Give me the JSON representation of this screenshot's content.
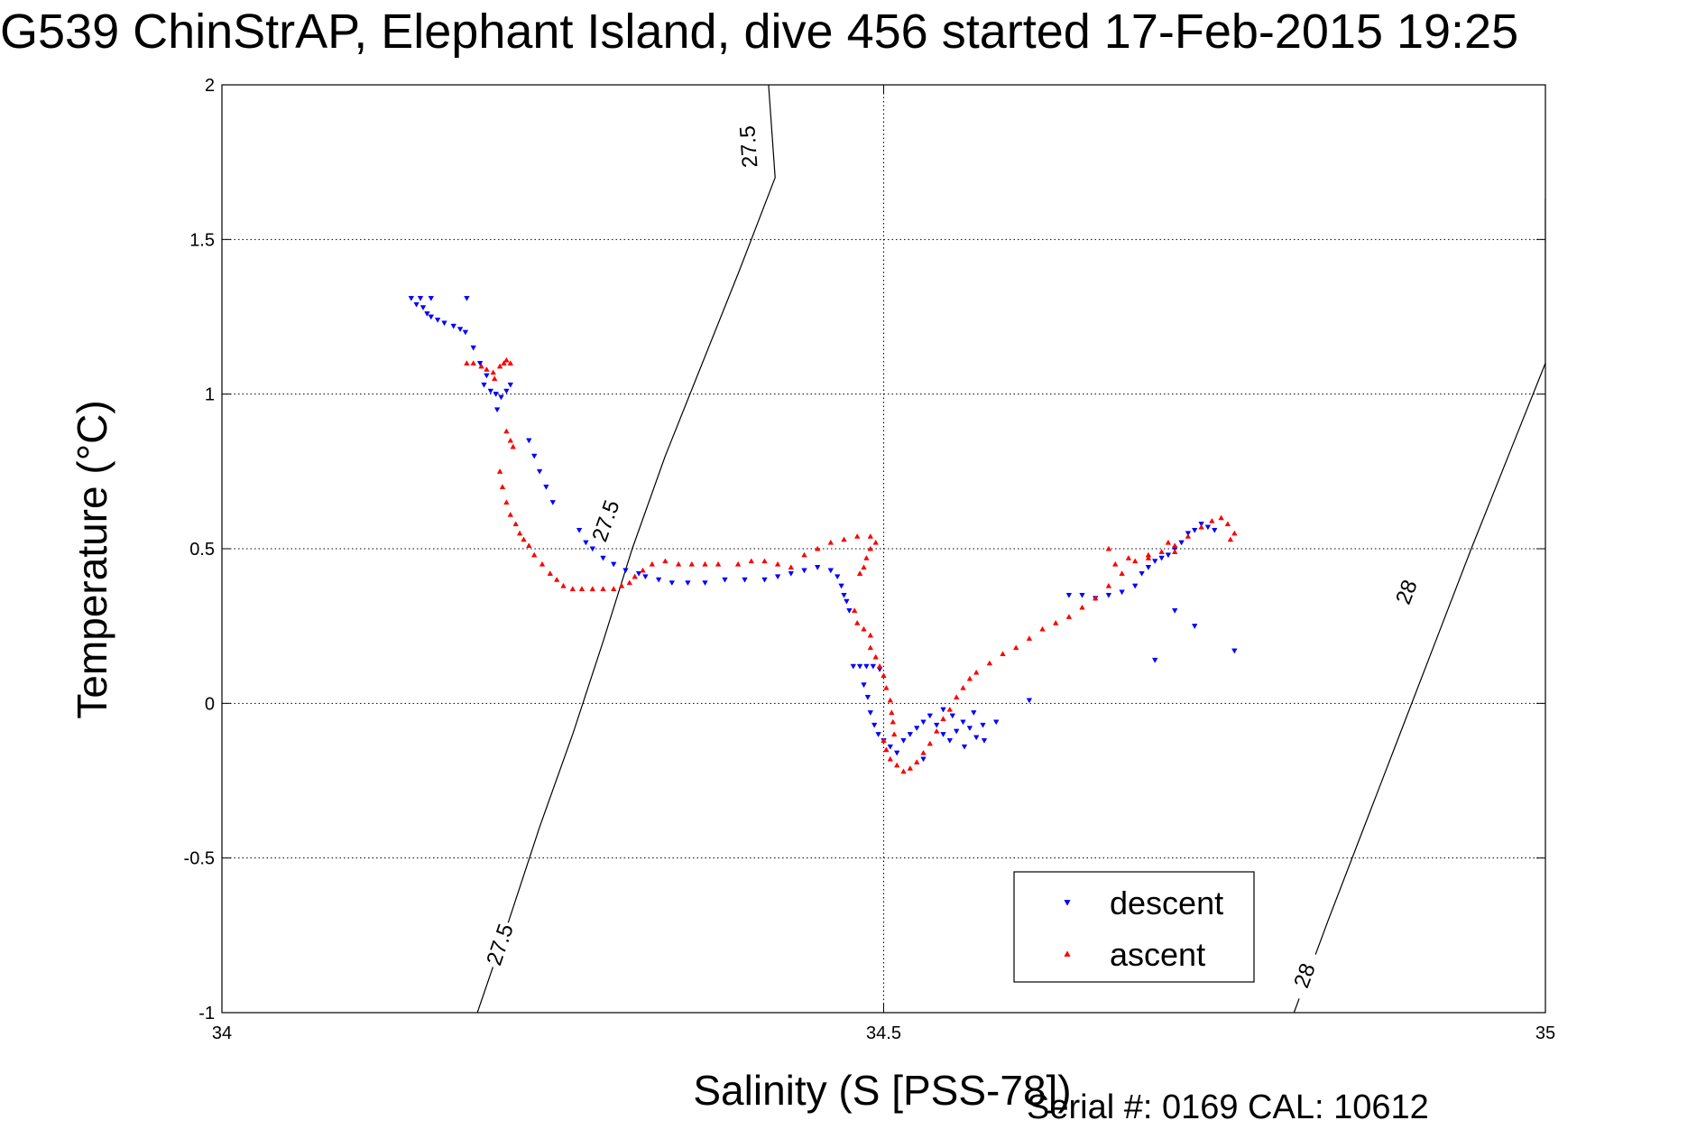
{
  "figure": {
    "title": "G539 ChinStrAP, Elephant Island, dive 456 started 17-Feb-2015 19:25",
    "serial": "Serial #: 0169 CAL: 10612"
  },
  "chart_data": {
    "type": "scatter",
    "xlabel": "Salinity (S [PSS-78])",
    "ylabel": "Temperature (°C)",
    "xlim": [
      34,
      35
    ],
    "ylim": [
      -1,
      2
    ],
    "x_ticks": [
      34,
      34.5,
      35
    ],
    "x_tick_labels": [
      "34",
      "34.5",
      "35"
    ],
    "y_ticks": [
      -1,
      -0.5,
      0,
      0.5,
      1,
      1.5,
      2
    ],
    "y_tick_labels": [
      "-1",
      "-0.5",
      "0",
      "0.5",
      "1",
      "1.5",
      "2"
    ],
    "grid": true,
    "legend_position": "bottom-right",
    "contours": [
      {
        "label": "27.5",
        "points": [
          [
            34.193,
            -1.0
          ],
          [
            34.217,
            -0.7
          ],
          [
            34.24,
            -0.4
          ],
          [
            34.265,
            -0.1
          ],
          [
            34.288,
            0.2
          ],
          [
            34.31,
            0.5
          ],
          [
            34.335,
            0.8
          ],
          [
            34.363,
            1.1
          ],
          [
            34.391,
            1.4
          ],
          [
            34.418,
            1.7
          ],
          [
            34.413,
            2.0
          ]
        ],
        "label_positions": [
          [
            34.21,
            -0.78
          ],
          [
            34.29,
            0.59
          ],
          [
            34.398,
            1.8
          ]
        ]
      },
      {
        "label": "28",
        "points": [
          [
            34.81,
            -1.0
          ],
          [
            34.836,
            -0.7
          ],
          [
            34.863,
            -0.4
          ],
          [
            34.89,
            -0.1
          ],
          [
            34.917,
            0.2
          ],
          [
            34.944,
            0.5
          ],
          [
            34.972,
            0.8
          ],
          [
            35.0,
            1.1
          ],
          [
            35.0,
            1.63
          ]
        ],
        "label_positions": [
          [
            34.818,
            -0.88
          ],
          [
            34.895,
            0.36
          ]
        ]
      }
    ],
    "series": [
      {
        "name": "descent",
        "color": "#0000ff",
        "marker": "triangle-down",
        "points": [
          [
            34.143,
            1.31
          ],
          [
            34.15,
            1.31
          ],
          [
            34.158,
            1.31
          ],
          [
            34.185,
            1.31
          ],
          [
            34.147,
            1.29
          ],
          [
            34.152,
            1.28
          ],
          [
            34.155,
            1.26
          ],
          [
            34.158,
            1.25
          ],
          [
            34.163,
            1.24
          ],
          [
            34.168,
            1.23
          ],
          [
            34.175,
            1.22
          ],
          [
            34.18,
            1.21
          ],
          [
            34.184,
            1.2
          ],
          [
            34.19,
            1.15
          ],
          [
            34.195,
            1.1
          ],
          [
            34.2,
            1.06
          ],
          [
            34.198,
            1.03
          ],
          [
            34.203,
            1.01
          ],
          [
            34.207,
            1.0
          ],
          [
            34.211,
            0.99
          ],
          [
            34.215,
            1.01
          ],
          [
            34.218,
            1.03
          ],
          [
            34.208,
            0.95
          ],
          [
            34.232,
            0.85
          ],
          [
            34.236,
            0.8
          ],
          [
            34.24,
            0.75
          ],
          [
            34.245,
            0.7
          ],
          [
            34.25,
            0.65
          ],
          [
            34.27,
            0.56
          ],
          [
            34.275,
            0.52
          ],
          [
            34.28,
            0.5
          ],
          [
            34.288,
            0.47
          ],
          [
            34.296,
            0.45
          ],
          [
            34.305,
            0.43
          ],
          [
            34.315,
            0.42
          ],
          [
            34.32,
            0.41
          ],
          [
            34.33,
            0.4
          ],
          [
            34.34,
            0.39
          ],
          [
            34.352,
            0.39
          ],
          [
            34.365,
            0.39
          ],
          [
            34.38,
            0.4
          ],
          [
            34.395,
            0.4
          ],
          [
            34.41,
            0.4
          ],
          [
            34.42,
            0.41
          ],
          [
            34.43,
            0.42
          ],
          [
            34.44,
            0.43
          ],
          [
            34.45,
            0.44
          ],
          [
            34.46,
            0.43
          ],
          [
            34.465,
            0.41
          ],
          [
            34.468,
            0.38
          ],
          [
            34.47,
            0.35
          ],
          [
            34.472,
            0.33
          ],
          [
            34.474,
            0.3
          ],
          [
            34.477,
            0.12
          ],
          [
            34.482,
            0.12
          ],
          [
            34.487,
            0.12
          ],
          [
            34.492,
            0.12
          ],
          [
            34.497,
            0.11
          ],
          [
            34.485,
            0.06
          ],
          [
            34.488,
            0.02
          ],
          [
            34.49,
            -0.03
          ],
          [
            34.493,
            -0.07
          ],
          [
            34.496,
            -0.1
          ],
          [
            34.5,
            -0.12
          ],
          [
            34.505,
            -0.14
          ],
          [
            34.51,
            -0.16
          ],
          [
            34.515,
            -0.12
          ],
          [
            34.52,
            -0.1
          ],
          [
            34.525,
            -0.08
          ],
          [
            34.53,
            -0.06
          ],
          [
            34.535,
            -0.04
          ],
          [
            34.54,
            -0.07
          ],
          [
            34.545,
            -0.1
          ],
          [
            34.55,
            -0.12
          ],
          [
            34.555,
            -0.09
          ],
          [
            34.56,
            -0.06
          ],
          [
            34.565,
            -0.08
          ],
          [
            34.57,
            -0.11
          ],
          [
            34.575,
            -0.07
          ],
          [
            34.585,
            -0.06
          ],
          [
            34.53,
            -0.18
          ],
          [
            34.545,
            -0.02
          ],
          [
            34.552,
            -0.04
          ],
          [
            34.561,
            -0.14
          ],
          [
            34.568,
            -0.03
          ],
          [
            34.576,
            -0.12
          ],
          [
            34.64,
            0.35
          ],
          [
            34.65,
            0.35
          ],
          [
            34.66,
            0.34
          ],
          [
            34.67,
            0.35
          ],
          [
            34.68,
            0.36
          ],
          [
            34.69,
            0.38
          ],
          [
            34.695,
            0.42
          ],
          [
            34.7,
            0.44
          ],
          [
            34.705,
            0.46
          ],
          [
            34.71,
            0.47
          ],
          [
            34.715,
            0.48
          ],
          [
            34.72,
            0.5
          ],
          [
            34.725,
            0.52
          ],
          [
            34.73,
            0.55
          ],
          [
            34.735,
            0.56
          ],
          [
            34.74,
            0.58
          ],
          [
            34.745,
            0.57
          ],
          [
            34.75,
            0.56
          ],
          [
            34.705,
            0.14
          ],
          [
            34.72,
            0.3
          ],
          [
            34.735,
            0.25
          ],
          [
            34.765,
            0.17
          ],
          [
            34.61,
            0.01
          ]
        ]
      },
      {
        "name": "ascent",
        "color": "#ff0000",
        "marker": "triangle-up",
        "points": [
          [
            34.185,
            1.1
          ],
          [
            34.19,
            1.1
          ],
          [
            34.196,
            1.09
          ],
          [
            34.2,
            1.08
          ],
          [
            34.205,
            1.07
          ],
          [
            34.21,
            1.09
          ],
          [
            34.213,
            1.1
          ],
          [
            34.215,
            1.11
          ],
          [
            34.218,
            1.1
          ],
          [
            34.206,
            1.05
          ],
          [
            34.215,
            0.88
          ],
          [
            34.218,
            0.85
          ],
          [
            34.22,
            0.83
          ],
          [
            34.21,
            0.75
          ],
          [
            34.212,
            0.7
          ],
          [
            34.215,
            0.65
          ],
          [
            34.218,
            0.61
          ],
          [
            34.222,
            0.58
          ],
          [
            34.225,
            0.55
          ],
          [
            34.228,
            0.53
          ],
          [
            34.232,
            0.51
          ],
          [
            34.236,
            0.48
          ],
          [
            34.242,
            0.45
          ],
          [
            34.248,
            0.42
          ],
          [
            34.253,
            0.4
          ],
          [
            34.258,
            0.38
          ],
          [
            34.265,
            0.37
          ],
          [
            34.272,
            0.37
          ],
          [
            34.28,
            0.37
          ],
          [
            34.288,
            0.37
          ],
          [
            34.296,
            0.37
          ],
          [
            34.302,
            0.38
          ],
          [
            34.308,
            0.39
          ],
          [
            34.312,
            0.41
          ],
          [
            34.318,
            0.43
          ],
          [
            34.325,
            0.45
          ],
          [
            34.335,
            0.46
          ],
          [
            34.345,
            0.45
          ],
          [
            34.355,
            0.45
          ],
          [
            34.365,
            0.45
          ],
          [
            34.375,
            0.45
          ],
          [
            34.39,
            0.45
          ],
          [
            34.4,
            0.46
          ],
          [
            34.41,
            0.46
          ],
          [
            34.42,
            0.45
          ],
          [
            34.43,
            0.44
          ],
          [
            34.44,
            0.48
          ],
          [
            34.45,
            0.5
          ],
          [
            34.46,
            0.52
          ],
          [
            34.47,
            0.53
          ],
          [
            34.48,
            0.54
          ],
          [
            34.49,
            0.54
          ],
          [
            34.494,
            0.52
          ],
          [
            34.49,
            0.5
          ],
          [
            34.487,
            0.47
          ],
          [
            34.485,
            0.44
          ],
          [
            34.482,
            0.42
          ],
          [
            34.478,
            0.3
          ],
          [
            34.48,
            0.26
          ],
          [
            34.485,
            0.24
          ],
          [
            34.49,
            0.22
          ],
          [
            34.49,
            0.18
          ],
          [
            34.494,
            0.15
          ],
          [
            34.497,
            0.12
          ],
          [
            34.5,
            0.09
          ],
          [
            34.502,
            0.05
          ],
          [
            34.505,
            0.01
          ],
          [
            34.506,
            -0.03
          ],
          [
            34.507,
            -0.06
          ],
          [
            34.508,
            -0.1
          ],
          [
            34.5,
            -0.12
          ],
          [
            34.502,
            -0.15
          ],
          [
            34.505,
            -0.18
          ],
          [
            34.51,
            -0.2
          ],
          [
            34.515,
            -0.22
          ],
          [
            34.52,
            -0.21
          ],
          [
            34.525,
            -0.19
          ],
          [
            34.53,
            -0.16
          ],
          [
            34.535,
            -0.13
          ],
          [
            34.54,
            -0.09
          ],
          [
            34.545,
            -0.05
          ],
          [
            34.55,
            -0.02
          ],
          [
            34.555,
            0.02
          ],
          [
            34.56,
            0.05
          ],
          [
            34.565,
            0.08
          ],
          [
            34.57,
            0.1
          ],
          [
            34.58,
            0.13
          ],
          [
            34.59,
            0.16
          ],
          [
            34.6,
            0.18
          ],
          [
            34.61,
            0.21
          ],
          [
            34.62,
            0.24
          ],
          [
            34.63,
            0.26
          ],
          [
            34.64,
            0.28
          ],
          [
            34.65,
            0.31
          ],
          [
            34.66,
            0.34
          ],
          [
            34.67,
            0.38
          ],
          [
            34.68,
            0.42
          ],
          [
            34.69,
            0.46
          ],
          [
            34.7,
            0.48
          ],
          [
            34.71,
            0.49
          ],
          [
            34.72,
            0.51
          ],
          [
            34.73,
            0.54
          ],
          [
            34.74,
            0.57
          ],
          [
            34.748,
            0.59
          ],
          [
            34.755,
            0.6
          ],
          [
            34.76,
            0.58
          ],
          [
            34.765,
            0.55
          ],
          [
            34.762,
            0.53
          ],
          [
            34.67,
            0.5
          ],
          [
            34.675,
            0.45
          ],
          [
            34.685,
            0.47
          ],
          [
            34.7,
            0.47
          ],
          [
            34.715,
            0.52
          ],
          [
            34.72,
            0.49
          ]
        ]
      }
    ]
  }
}
